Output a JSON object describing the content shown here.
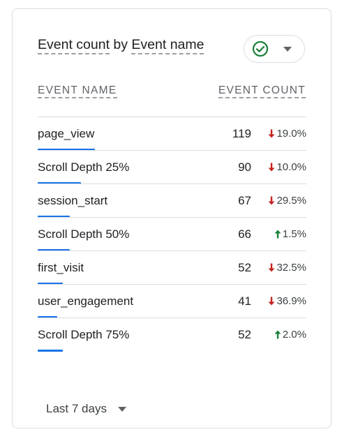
{
  "card": {
    "title_part1": "Event count",
    "title_connector": " by ",
    "title_part2": "Event name",
    "status_icon": "check-circle-icon",
    "status_color": "#188038"
  },
  "table": {
    "headers": {
      "name": "EVENT NAME",
      "count": "EVENT COUNT"
    },
    "rows": [
      {
        "name": "page_view",
        "count": "119",
        "change": "19.0%",
        "direction": "down",
        "share": 1.0
      },
      {
        "name": "Scroll Depth 25%",
        "count": "90",
        "change": "10.0%",
        "direction": "down",
        "share": 0.756
      },
      {
        "name": "session_start",
        "count": "67",
        "change": "29.5%",
        "direction": "down",
        "share": 0.563
      },
      {
        "name": "Scroll Depth 50%",
        "count": "66",
        "change": "1.5%",
        "direction": "up",
        "share": 0.555
      },
      {
        "name": "first_visit",
        "count": "52",
        "change": "32.5%",
        "direction": "down",
        "share": 0.437
      },
      {
        "name": "user_engagement",
        "count": "41",
        "change": "36.9%",
        "direction": "down",
        "share": 0.345
      },
      {
        "name": "Scroll Depth 75%",
        "count": "52",
        "change": "2.0%",
        "direction": "up",
        "share": 0.437
      }
    ]
  },
  "footer": {
    "date_range": "Last 7 days"
  },
  "colors": {
    "down": "#c5221f",
    "up": "#188038",
    "bar": "#1a73e8"
  }
}
